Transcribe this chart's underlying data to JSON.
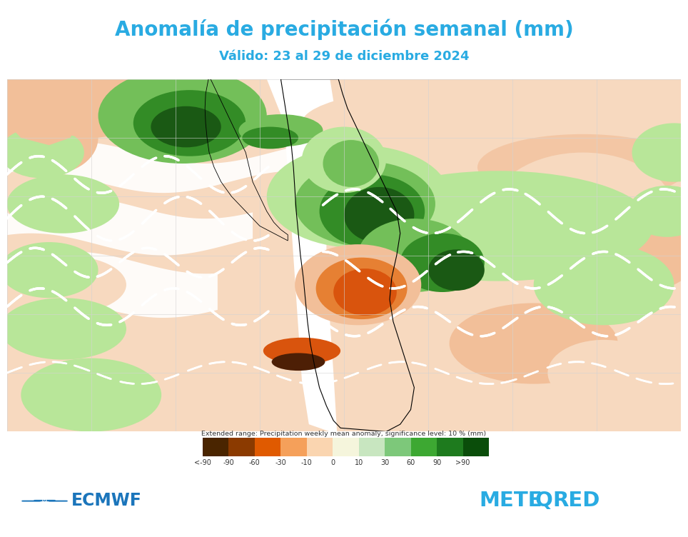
{
  "title": "Anomalía de precipitación semanal (mm)",
  "subtitle": "Válido: 23 al 29 de diciembre 2024",
  "title_color": "#29ABE2",
  "subtitle_color": "#29ABE2",
  "title_fontsize": 20,
  "subtitle_fontsize": 13,
  "colorbar_label": "Extended range: Precipitation weekly mean anomaly, significance level: 10 % (mm)",
  "colorbar_ticks": [
    "<-90",
    "-90",
    "-60",
    "-30",
    "-10",
    "0",
    "10",
    "30",
    "60",
    "90",
    ">90"
  ],
  "colorbar_colors": [
    "#4a2500",
    "#8B3A00",
    "#E05A00",
    "#F5A05A",
    "#FAD5B0",
    "#F5F5DC",
    "#C8E6C0",
    "#7DC87A",
    "#3DA832",
    "#1E7B1E",
    "#0A4D0A"
  ],
  "ecmwf_color": "#1B75BB",
  "meteored_color": "#29ABE2",
  "bg_color": "#FFFFFF",
  "colors": {
    "white": [
      1.0,
      1.0,
      1.0
    ],
    "light_peach": [
      0.97,
      0.85,
      0.75
    ],
    "peach": [
      0.95,
      0.75,
      0.6
    ],
    "orange": [
      0.9,
      0.5,
      0.2
    ],
    "dark_orange": [
      0.85,
      0.33,
      0.05
    ],
    "brown": [
      0.3,
      0.12,
      0.02
    ],
    "light_green": [
      0.72,
      0.9,
      0.6
    ],
    "medium_green": [
      0.45,
      0.75,
      0.35
    ],
    "dark_green": [
      0.2,
      0.55,
      0.15
    ],
    "very_dark_green": [
      0.1,
      0.35,
      0.08
    ]
  },
  "fig_width": 9.64,
  "fig_height": 7.52
}
